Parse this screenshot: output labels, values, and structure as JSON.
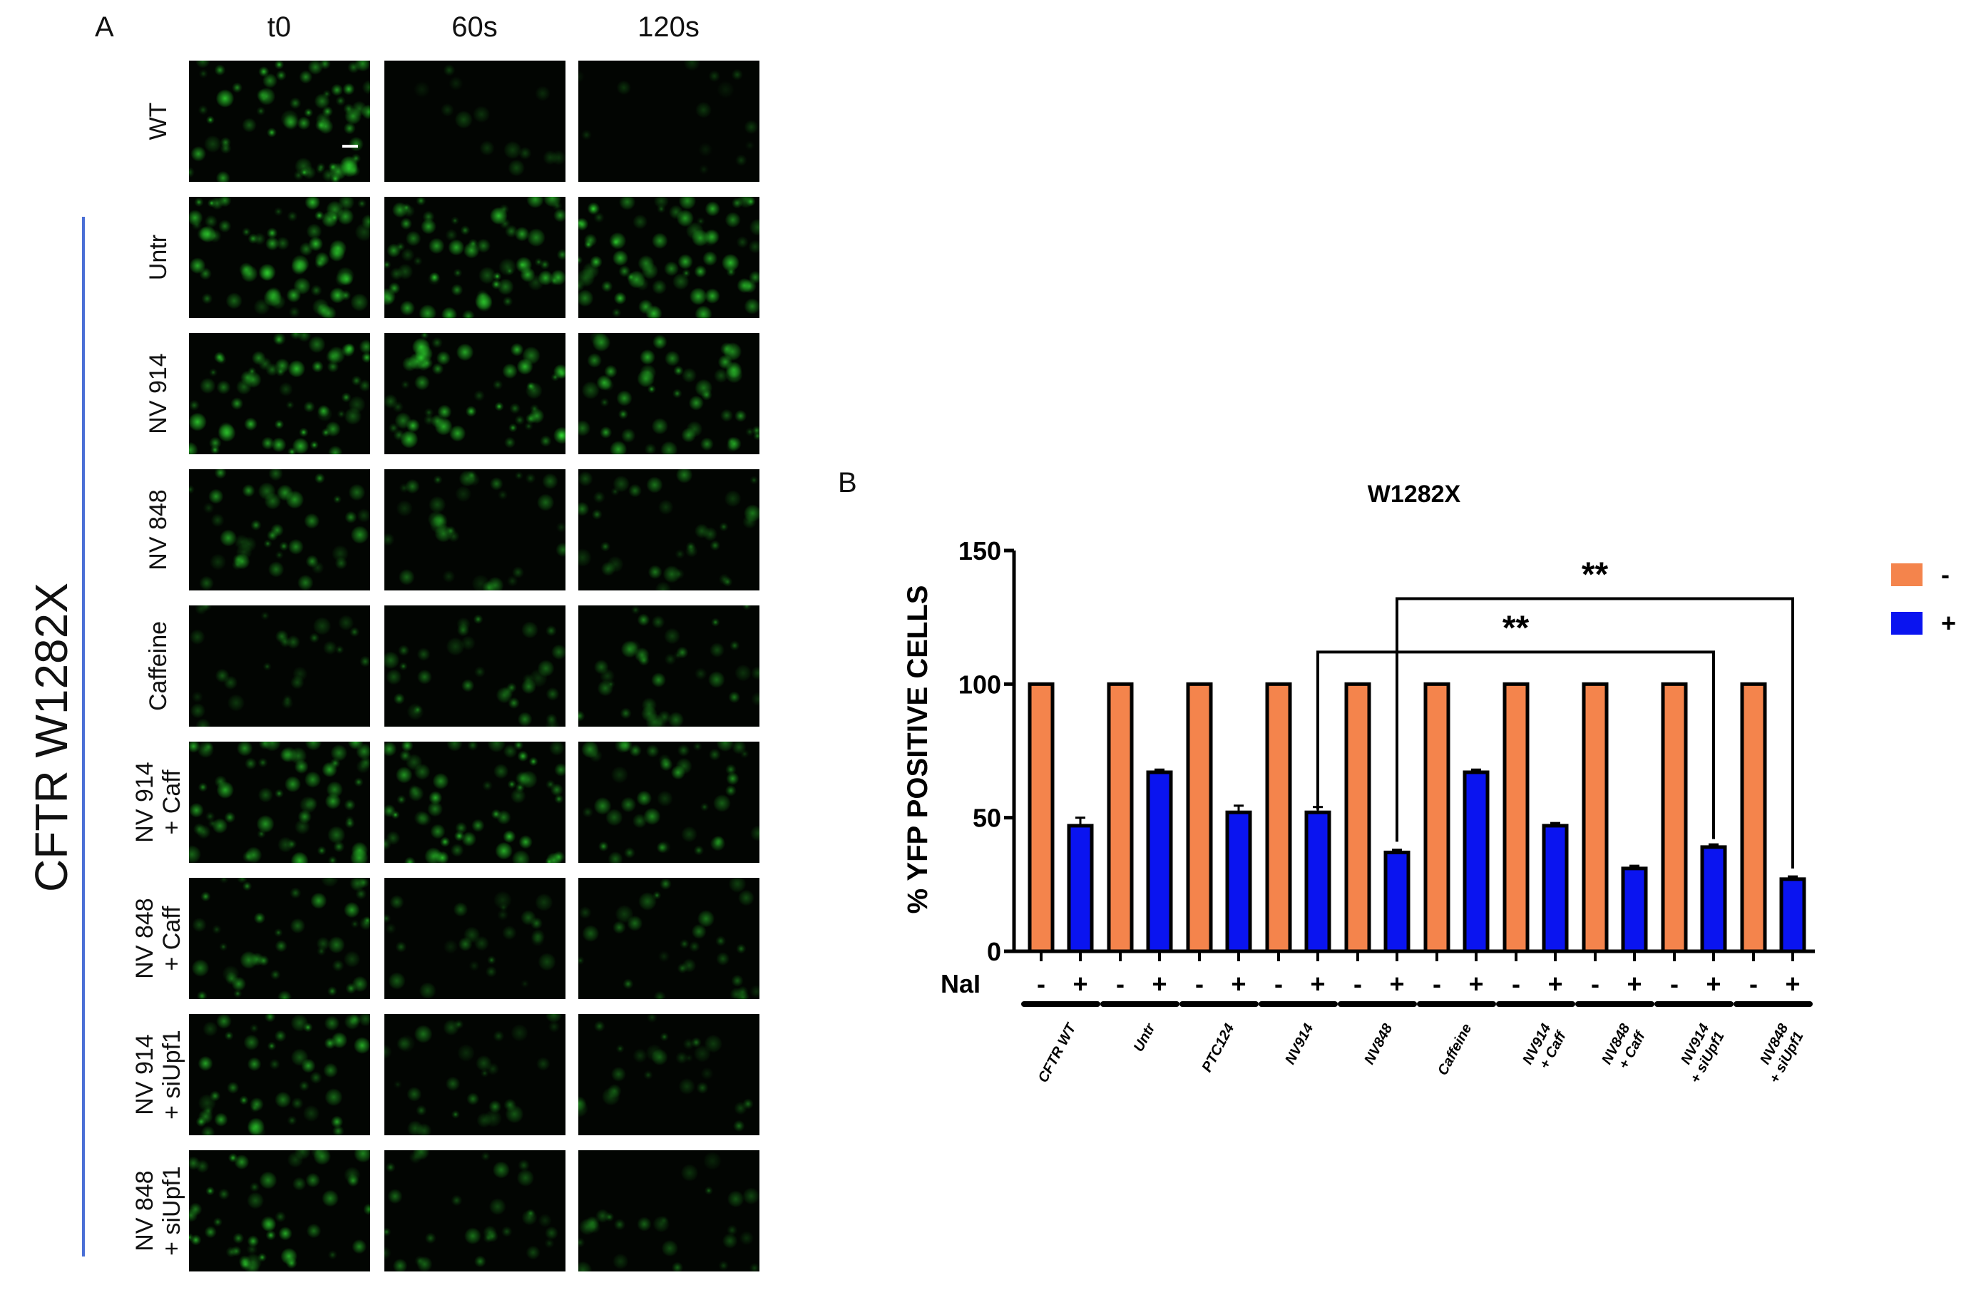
{
  "panel_a": {
    "letter": "A",
    "columns": [
      "t0",
      "60s",
      "120s"
    ],
    "rows": [
      "WT",
      "Untr",
      "NV 914",
      "NV 848",
      "Caffeine",
      "NV 914\n+ Caff",
      "NV 848\n+ Caff",
      "NV 914\n+ siUpf1",
      "NV 848\n+ siUpf1"
    ],
    "group_label": "CFTR W1282X",
    "group_line_color": "#4a6fd6",
    "image_color": "#2bd12b"
  },
  "panel_b": {
    "letter": "B"
  },
  "chart_data": {
    "type": "bar",
    "title": "W1282X",
    "ylabel": "% YFP POSITIVE CELLS",
    "xlabel": "",
    "ylim": [
      0,
      150
    ],
    "yticks": [
      "0",
      "50",
      "100",
      "150"
    ],
    "grid": false,
    "legend_position": "right",
    "categories": [
      "CFTR WT",
      "Untr",
      "PTC124",
      "NV914",
      "NV848",
      "Caffeine",
      "NV914\n+ Caff",
      "NV848\n+ Caff",
      "NV914\n+ siUpf1",
      "NV848\n+ siUpf1"
    ],
    "nai_label": "NaI",
    "nai_signs": [
      "-",
      "+"
    ],
    "series": [
      {
        "name": "-",
        "color": "#f4844c",
        "values": [
          100,
          100,
          100,
          100,
          100,
          100,
          100,
          100,
          100,
          100
        ],
        "errors": [
          0,
          0,
          0,
          0,
          0,
          0,
          0,
          0,
          0,
          0
        ]
      },
      {
        "name": "+",
        "color": "#0a14f0",
        "values": [
          47,
          67,
          52,
          52,
          37,
          67,
          47,
          31,
          39,
          27
        ],
        "errors": [
          3,
          1,
          2.5,
          2,
          1,
          1,
          1,
          1,
          1,
          1
        ]
      }
    ],
    "significance": [
      {
        "from": "NV914",
        "to": "NV914\n+ siUpf1",
        "label": "**"
      },
      {
        "from": "NV848",
        "to": "NV848\n+ siUpf1",
        "label": "**"
      }
    ]
  }
}
